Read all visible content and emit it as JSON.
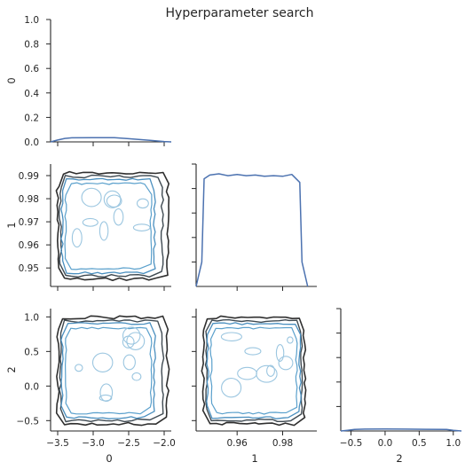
{
  "chart_data": {
    "type": "pairplot",
    "title": "Hyperparameter search",
    "variables": [
      "0",
      "1",
      "2"
    ],
    "layout": "corner",
    "colors": {
      "kde_line": "#4c72b0",
      "contour_levels": [
        "#2f2f2f",
        "#3f4a52",
        "#4a8fbf",
        "#5aa0cc",
        "#9bc6e0"
      ],
      "axis": "#262626"
    },
    "ranges": {
      "0": [
        -3.6,
        -1.9
      ],
      "1": [
        0.942,
        0.995
      ],
      "2": [
        -0.65,
        1.12
      ]
    },
    "diag_ylim": [
      0.0,
      1.0
    ],
    "diag_yticks": [
      "0.0",
      "0.2",
      "0.4",
      "0.6",
      "0.8",
      "1.0"
    ],
    "ticks": {
      "0": [
        "-3.5",
        "-3.0",
        "-2.5",
        "-2.0"
      ],
      "1": [
        "0.95",
        "0.96",
        "0.97",
        "0.98",
        "0.99"
      ],
      "1_bottom": [
        "0.96",
        "0.98"
      ],
      "2": [
        "-0.5",
        "0.0",
        "0.5",
        "1.0"
      ]
    },
    "diagonal": [
      {
        "variable": "0",
        "x": [
          -3.6,
          -3.5,
          -3.4,
          -3.3,
          -3.0,
          -2.7,
          -2.5,
          -2.2,
          -2.0,
          -1.9
        ],
        "y": [
          0.0,
          0.015,
          0.028,
          0.033,
          0.035,
          0.034,
          0.026,
          0.012,
          0.003,
          0.0
        ]
      },
      {
        "variable": "1",
        "x": [
          0.942,
          0.9445,
          0.9455,
          0.948,
          0.952,
          0.956,
          0.96,
          0.964,
          0.968,
          0.972,
          0.976,
          0.98,
          0.984,
          0.9875,
          0.9885,
          0.991
        ],
        "y": [
          0.0,
          0.2,
          0.88,
          0.91,
          0.92,
          0.905,
          0.915,
          0.905,
          0.91,
          0.9,
          0.905,
          0.9,
          0.915,
          0.85,
          0.2,
          0.0
        ]
      },
      {
        "variable": "2",
        "x": [
          -0.65,
          -0.55,
          -0.45,
          -0.3,
          0.0,
          0.3,
          0.6,
          0.9,
          1.0,
          1.12
        ],
        "y": [
          0.0,
          0.006,
          0.012,
          0.015,
          0.016,
          0.015,
          0.014,
          0.012,
          0.006,
          0.0
        ]
      }
    ]
  }
}
